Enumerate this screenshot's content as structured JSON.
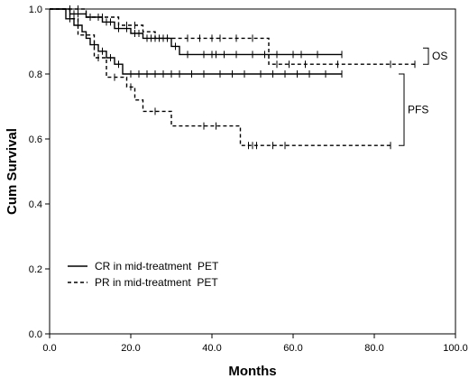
{
  "chart_data": {
    "type": "line",
    "title": "",
    "xlabel": "Months",
    "ylabel": "Cum Survival",
    "xlim": [
      0,
      100
    ],
    "ylim": [
      0,
      1
    ],
    "x_ticks": [
      0,
      20,
      40,
      60,
      80,
      100
    ],
    "x_tick_labels": [
      "0.0",
      "20.0",
      "40.0",
      "60.0",
      "80.0",
      "100.0"
    ],
    "y_ticks": [
      0,
      0.2,
      0.4,
      0.6,
      0.8,
      1.0
    ],
    "y_tick_labels": [
      "0.0",
      "0.2",
      "0.4",
      "0.6",
      "0.8",
      "1.0"
    ],
    "grid": false,
    "legend_position": "bottom-left",
    "series": [
      {
        "group": "OS",
        "name": "CR in mid-treatment  PET",
        "line_style": "solid",
        "color": "#000000",
        "steps": [
          [
            0,
            1.0
          ],
          [
            5,
            0.985
          ],
          [
            9,
            0.975
          ],
          [
            13,
            0.96
          ],
          [
            16,
            0.94
          ],
          [
            20,
            0.925
          ],
          [
            23,
            0.91
          ],
          [
            30,
            0.885
          ],
          [
            32,
            0.86
          ],
          [
            72,
            0.86
          ]
        ],
        "censor_x": [
          6,
          7,
          10,
          12,
          14,
          15,
          17,
          19,
          21,
          22,
          24,
          25,
          26,
          27,
          28,
          29,
          31,
          34,
          38,
          40,
          41,
          43,
          46,
          50,
          53,
          56,
          60,
          62,
          66,
          72
        ]
      },
      {
        "group": "OS",
        "name": "PR in mid-treatment  PET",
        "line_style": "dashed",
        "color": "#000000",
        "steps": [
          [
            0,
            1.0
          ],
          [
            9,
            0.975
          ],
          [
            17,
            0.95
          ],
          [
            23,
            0.93
          ],
          [
            26,
            0.91
          ],
          [
            54,
            0.83
          ],
          [
            90,
            0.83
          ]
        ],
        "censor_x": [
          5,
          7,
          13,
          19,
          21,
          29,
          34,
          37,
          40,
          42,
          46,
          50,
          56,
          59,
          63,
          71,
          84,
          90
        ]
      },
      {
        "group": "PFS",
        "name": "CR in mid-treatment  PET",
        "line_style": "solid",
        "color": "#000000",
        "steps": [
          [
            0,
            1.0
          ],
          [
            4,
            0.97
          ],
          [
            6,
            0.95
          ],
          [
            8,
            0.93
          ],
          [
            9,
            0.91
          ],
          [
            10,
            0.89
          ],
          [
            12,
            0.87
          ],
          [
            14,
            0.85
          ],
          [
            16,
            0.83
          ],
          [
            18,
            0.8
          ],
          [
            72,
            0.8
          ]
        ],
        "censor_x": [
          5,
          7,
          11,
          13,
          15,
          17,
          20,
          22,
          24,
          26,
          28,
          30,
          32,
          35,
          38,
          42,
          45,
          48,
          52,
          55,
          58,
          61,
          64,
          68,
          72
        ]
      },
      {
        "group": "PFS",
        "name": "PR in mid-treatment  PET",
        "line_style": "dashed",
        "color": "#000000",
        "steps": [
          [
            0,
            1.0
          ],
          [
            5,
            0.97
          ],
          [
            7,
            0.92
          ],
          [
            11,
            0.85
          ],
          [
            14,
            0.79
          ],
          [
            19,
            0.76
          ],
          [
            21,
            0.72
          ],
          [
            23,
            0.685
          ],
          [
            30,
            0.64
          ],
          [
            47,
            0.58
          ],
          [
            84,
            0.58
          ]
        ],
        "censor_x": [
          6,
          9,
          12,
          16,
          20,
          26,
          38,
          41,
          49,
          50,
          51,
          55,
          58,
          84
        ]
      }
    ],
    "annotations": [
      {
        "text": "OS",
        "anchor_x": 92,
        "y_from": 0.83,
        "y_to": 0.88
      },
      {
        "text": "PFS",
        "anchor_x": 86,
        "y_from": 0.58,
        "y_to": 0.8
      }
    ]
  }
}
